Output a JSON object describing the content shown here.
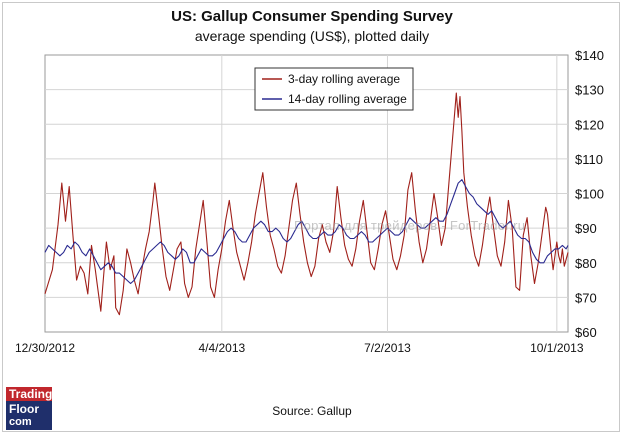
{
  "chart_data": {
    "type": "line",
    "title": "US: Gallup Consumer Spending Survey",
    "subtitle": "average spending (US$), plotted daily",
    "source": "Source: Gallup",
    "xlabel": "",
    "ylabel": "",
    "x_ticks": [
      "12/30/2012",
      "4/4/2013",
      "7/2/2013",
      "10/1/2013"
    ],
    "x_tick_index": [
      0,
      95,
      184,
      275
    ],
    "x_range": [
      0,
      281
    ],
    "y_ticks": [
      "$60",
      "$70",
      "$80",
      "$90",
      "$100",
      "$110",
      "$120",
      "$130",
      "$140"
    ],
    "y_tick_values": [
      60,
      70,
      80,
      90,
      100,
      110,
      120,
      130,
      140
    ],
    "ylim": [
      60,
      140
    ],
    "grid": true,
    "legend_position": "top-center",
    "series": [
      {
        "name": "3-day rolling average",
        "color": "#a0201a",
        "points": [
          [
            0,
            71
          ],
          [
            4,
            78
          ],
          [
            7,
            91
          ],
          [
            9,
            103
          ],
          [
            11,
            92
          ],
          [
            13,
            102
          ],
          [
            15,
            88
          ],
          [
            17,
            75
          ],
          [
            19,
            79
          ],
          [
            21,
            77
          ],
          [
            23,
            71
          ],
          [
            25,
            85
          ],
          [
            27,
            78
          ],
          [
            28,
            74
          ],
          [
            30,
            66
          ],
          [
            31,
            73
          ],
          [
            33,
            86
          ],
          [
            35,
            78
          ],
          [
            37,
            82
          ],
          [
            38,
            67
          ],
          [
            40,
            65
          ],
          [
            42,
            72
          ],
          [
            44,
            84
          ],
          [
            46,
            80
          ],
          [
            48,
            75
          ],
          [
            50,
            71
          ],
          [
            52,
            78
          ],
          [
            54,
            84
          ],
          [
            56,
            89
          ],
          [
            58,
            98
          ],
          [
            59,
            103
          ],
          [
            61,
            94
          ],
          [
            63,
            84
          ],
          [
            65,
            76
          ],
          [
            67,
            72
          ],
          [
            69,
            78
          ],
          [
            71,
            84
          ],
          [
            73,
            86
          ],
          [
            75,
            74
          ],
          [
            77,
            70
          ],
          [
            79,
            73
          ],
          [
            81,
            84
          ],
          [
            83,
            91
          ],
          [
            85,
            98
          ],
          [
            87,
            86
          ],
          [
            89,
            73
          ],
          [
            91,
            70
          ],
          [
            93,
            78
          ],
          [
            95,
            84
          ],
          [
            97,
            92
          ],
          [
            99,
            98
          ],
          [
            101,
            90
          ],
          [
            103,
            83
          ],
          [
            105,
            79
          ],
          [
            107,
            75
          ],
          [
            109,
            80
          ],
          [
            111,
            86
          ],
          [
            113,
            94
          ],
          [
            115,
            100
          ],
          [
            117,
            106
          ],
          [
            119,
            96
          ],
          [
            121,
            88
          ],
          [
            123,
            84
          ],
          [
            125,
            79
          ],
          [
            127,
            77
          ],
          [
            129,
            82
          ],
          [
            131,
            90
          ],
          [
            133,
            98
          ],
          [
            135,
            103
          ],
          [
            137,
            94
          ],
          [
            139,
            86
          ],
          [
            141,
            80
          ],
          [
            143,
            76
          ],
          [
            145,
            79
          ],
          [
            147,
            87
          ],
          [
            149,
            91
          ],
          [
            151,
            86
          ],
          [
            153,
            83
          ],
          [
            155,
            89
          ],
          [
            157,
            102
          ],
          [
            159,
            93
          ],
          [
            161,
            85
          ],
          [
            163,
            81
          ],
          [
            165,
            79
          ],
          [
            167,
            84
          ],
          [
            169,
            92
          ],
          [
            171,
            98
          ],
          [
            173,
            89
          ],
          [
            175,
            80
          ],
          [
            177,
            78
          ],
          [
            179,
            84
          ],
          [
            181,
            91
          ],
          [
            183,
            95
          ],
          [
            185,
            88
          ],
          [
            187,
            81
          ],
          [
            189,
            78
          ],
          [
            191,
            82
          ],
          [
            193,
            88
          ],
          [
            195,
            101
          ],
          [
            197,
            106
          ],
          [
            199,
            95
          ],
          [
            201,
            86
          ],
          [
            203,
            80
          ],
          [
            205,
            84
          ],
          [
            207,
            92
          ],
          [
            209,
            100
          ],
          [
            211,
            93
          ],
          [
            213,
            85
          ],
          [
            215,
            90
          ],
          [
            217,
            103
          ],
          [
            219,
            116
          ],
          [
            221,
            129
          ],
          [
            222,
            122
          ],
          [
            223,
            128
          ],
          [
            224,
            118
          ],
          [
            225,
            106
          ],
          [
            227,
            96
          ],
          [
            229,
            88
          ],
          [
            231,
            82
          ],
          [
            233,
            79
          ],
          [
            235,
            85
          ],
          [
            237,
            93
          ],
          [
            239,
            99
          ],
          [
            241,
            90
          ],
          [
            243,
            82
          ],
          [
            245,
            79
          ],
          [
            247,
            86
          ],
          [
            249,
            98
          ],
          [
            251,
            90
          ],
          [
            253,
            73
          ],
          [
            255,
            72
          ],
          [
            257,
            88
          ],
          [
            259,
            93
          ],
          [
            261,
            82
          ],
          [
            263,
            74
          ],
          [
            265,
            80
          ],
          [
            267,
            88
          ],
          [
            269,
            96
          ],
          [
            270,
            94
          ],
          [
            272,
            83
          ],
          [
            273,
            78
          ],
          [
            275,
            86
          ],
          [
            276,
            82
          ],
          [
            277,
            80
          ],
          [
            278,
            84
          ],
          [
            279,
            79
          ],
          [
            281,
            83
          ]
        ]
      },
      {
        "name": "14-day rolling average",
        "color": "#2a2a90",
        "points": [
          [
            0,
            83
          ],
          [
            2,
            85
          ],
          [
            4,
            84
          ],
          [
            6,
            83
          ],
          [
            8,
            82
          ],
          [
            10,
            83
          ],
          [
            12,
            85
          ],
          [
            14,
            84
          ],
          [
            16,
            86
          ],
          [
            18,
            85
          ],
          [
            20,
            83
          ],
          [
            22,
            82
          ],
          [
            24,
            84
          ],
          [
            26,
            82
          ],
          [
            28,
            80
          ],
          [
            30,
            78
          ],
          [
            32,
            79
          ],
          [
            34,
            80
          ],
          [
            36,
            79
          ],
          [
            38,
            77
          ],
          [
            40,
            77
          ],
          [
            42,
            76
          ],
          [
            44,
            75
          ],
          [
            46,
            74
          ],
          [
            48,
            75
          ],
          [
            50,
            77
          ],
          [
            52,
            79
          ],
          [
            54,
            81
          ],
          [
            56,
            83
          ],
          [
            58,
            84
          ],
          [
            60,
            85
          ],
          [
            62,
            86
          ],
          [
            64,
            85
          ],
          [
            66,
            83
          ],
          [
            68,
            82
          ],
          [
            70,
            81
          ],
          [
            72,
            82
          ],
          [
            74,
            84
          ],
          [
            76,
            83
          ],
          [
            78,
            80
          ],
          [
            80,
            80
          ],
          [
            82,
            82
          ],
          [
            84,
            84
          ],
          [
            86,
            83
          ],
          [
            88,
            82
          ],
          [
            90,
            82
          ],
          [
            92,
            83
          ],
          [
            94,
            85
          ],
          [
            96,
            87
          ],
          [
            98,
            89
          ],
          [
            100,
            90
          ],
          [
            102,
            89
          ],
          [
            104,
            87
          ],
          [
            106,
            86
          ],
          [
            108,
            86
          ],
          [
            110,
            88
          ],
          [
            112,
            90
          ],
          [
            114,
            91
          ],
          [
            116,
            92
          ],
          [
            118,
            91
          ],
          [
            120,
            89
          ],
          [
            122,
            89
          ],
          [
            124,
            90
          ],
          [
            126,
            89
          ],
          [
            128,
            87
          ],
          [
            130,
            86
          ],
          [
            132,
            87
          ],
          [
            134,
            89
          ],
          [
            136,
            91
          ],
          [
            138,
            92
          ],
          [
            140,
            90
          ],
          [
            142,
            88
          ],
          [
            144,
            87
          ],
          [
            146,
            87
          ],
          [
            148,
            88
          ],
          [
            150,
            89
          ],
          [
            152,
            88
          ],
          [
            154,
            88
          ],
          [
            156,
            89
          ],
          [
            158,
            91
          ],
          [
            160,
            90
          ],
          [
            162,
            88
          ],
          [
            164,
            87
          ],
          [
            166,
            87
          ],
          [
            168,
            88
          ],
          [
            170,
            89
          ],
          [
            172,
            88
          ],
          [
            174,
            86
          ],
          [
            176,
            86
          ],
          [
            178,
            87
          ],
          [
            180,
            88
          ],
          [
            182,
            89
          ],
          [
            184,
            90
          ],
          [
            186,
            89
          ],
          [
            188,
            88
          ],
          [
            190,
            88
          ],
          [
            192,
            89
          ],
          [
            194,
            91
          ],
          [
            196,
            93
          ],
          [
            198,
            92
          ],
          [
            200,
            91
          ],
          [
            202,
            90
          ],
          [
            204,
            90
          ],
          [
            206,
            91
          ],
          [
            208,
            92
          ],
          [
            210,
            93
          ],
          [
            212,
            92
          ],
          [
            214,
            92
          ],
          [
            216,
            94
          ],
          [
            218,
            97
          ],
          [
            220,
            100
          ],
          [
            222,
            103
          ],
          [
            224,
            104
          ],
          [
            226,
            102
          ],
          [
            228,
            100
          ],
          [
            230,
            99
          ],
          [
            232,
            97
          ],
          [
            234,
            96
          ],
          [
            236,
            95
          ],
          [
            238,
            94
          ],
          [
            240,
            95
          ],
          [
            242,
            93
          ],
          [
            244,
            91
          ],
          [
            246,
            90
          ],
          [
            248,
            91
          ],
          [
            250,
            92
          ],
          [
            252,
            90
          ],
          [
            254,
            88
          ],
          [
            256,
            87
          ],
          [
            258,
            87
          ],
          [
            260,
            86
          ],
          [
            262,
            83
          ],
          [
            264,
            81
          ],
          [
            266,
            80
          ],
          [
            268,
            80
          ],
          [
            270,
            82
          ],
          [
            272,
            83
          ],
          [
            274,
            84
          ],
          [
            276,
            84
          ],
          [
            278,
            85
          ],
          [
            280,
            84
          ],
          [
            281,
            85
          ]
        ]
      }
    ]
  },
  "watermark_text": "Портал для трейдеров - ForTrader.ru",
  "logo": {
    "line1": "Trading",
    "line2": "Floor",
    "line3": "com"
  }
}
